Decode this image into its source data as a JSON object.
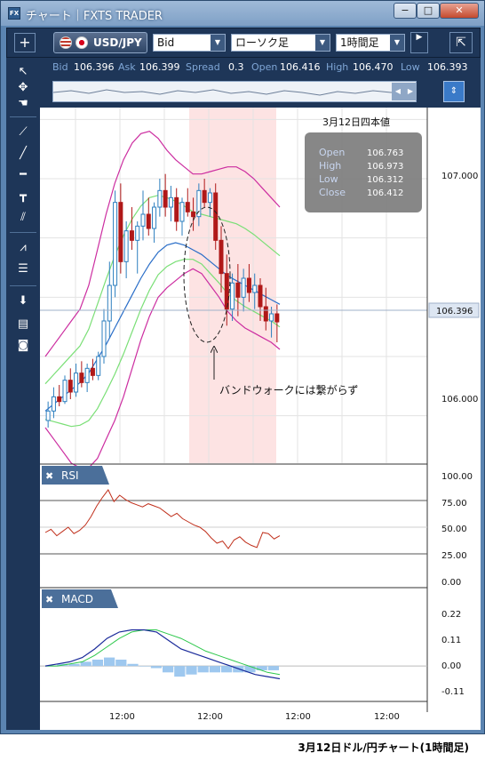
{
  "window": {
    "icon_text": "FX",
    "title": "チャート｜FXTS TRADER",
    "buttons": {
      "minimize": "−",
      "maximize": "□",
      "close": "✕"
    }
  },
  "toolbar": {
    "plus_label": "+",
    "pair": "USD/JPY",
    "price_type": "Bid",
    "chart_type": "ローソク足",
    "timeframe": "1時間足",
    "scroll_glyph": "▶",
    "detach_glyph": "⇱"
  },
  "quote": {
    "bid_label": "Bid",
    "bid": "106.396",
    "ask_label": "Ask",
    "ask": "106.399",
    "spread_label": "Spread",
    "spread": "0.3",
    "open_label": "Open",
    "open": "106.416",
    "high_label": "High",
    "high": "106.470",
    "low_label": "Low",
    "low": "106.393"
  },
  "ohlc_box": {
    "title": "3月12日四本値",
    "open_label": "Open",
    "open": "106.763",
    "high_label": "High",
    "high": "106.973",
    "low_label": "Low",
    "low": "106.312",
    "close_label": "Close",
    "close": "106.412"
  },
  "annotation": "バンドウォークには繋がらず",
  "price_axis": {
    "ticks": [
      "107.000",
      "106.000"
    ],
    "current": "106.396"
  },
  "rsi": {
    "label": "RSI",
    "ticks": [
      "100.00",
      "75.00",
      "50.00",
      "25.00",
      "0.00"
    ]
  },
  "macd": {
    "label": "MACD",
    "ticks": [
      "0.22",
      "0.11",
      "0.00",
      "-0.11"
    ]
  },
  "time_axis": [
    "12:00",
    "12:00",
    "12:00",
    "12:00"
  ],
  "caption": "3月12日ドル/円チャート(1時間足)",
  "colors": {
    "up_candle": "#2d7fbf",
    "down_candle": "#b01818",
    "bb_outer": "#cc2da0",
    "bb_inner": "#7adf76",
    "ma": "#2a6ec8",
    "highlight": "#fde3e3",
    "rsi_line": "#c0301c",
    "macd_line": "#1a2a9a",
    "signal_line": "#2ec84c",
    "hist": "#9ec8ef"
  },
  "chart_data": {
    "type": "candlestick",
    "title": "",
    "x_ticks": [
      "12:00",
      "12:00",
      "12:00",
      "12:00"
    ],
    "ylim": [
      105.8,
      107.3
    ],
    "y_ticks": [
      106.0,
      107.0
    ],
    "current_price": 106.396,
    "series": [
      {
        "candles": [
          [
            105.98,
            106.06,
            105.95,
            106.02
          ],
          [
            106.02,
            106.12,
            105.99,
            106.08
          ],
          [
            106.08,
            106.13,
            106.04,
            106.06
          ],
          [
            106.06,
            106.17,
            106.05,
            106.15
          ],
          [
            106.15,
            106.2,
            106.07,
            106.1
          ],
          [
            106.1,
            106.22,
            106.08,
            106.18
          ],
          [
            106.18,
            106.23,
            106.12,
            106.14
          ],
          [
            106.14,
            106.22,
            106.1,
            106.2
          ],
          [
            106.2,
            106.24,
            106.15,
            106.17
          ],
          [
            106.17,
            106.27,
            106.15,
            106.25
          ],
          [
            106.25,
            106.45,
            106.22,
            106.4
          ],
          [
            106.4,
            106.65,
            106.33,
            106.55
          ],
          [
            106.55,
            106.95,
            106.5,
            106.9
          ],
          [
            106.9,
            106.98,
            106.6,
            106.65
          ],
          [
            106.65,
            106.82,
            106.58,
            106.78
          ],
          [
            106.78,
            106.88,
            106.7,
            106.74
          ],
          [
            106.74,
            106.82,
            106.6,
            106.8
          ],
          [
            106.8,
            106.95,
            106.74,
            106.85
          ],
          [
            106.85,
            106.92,
            106.76,
            106.79
          ],
          [
            106.79,
            106.9,
            106.73,
            106.88
          ],
          [
            106.88,
            107.0,
            106.84,
            106.95
          ],
          [
            106.95,
            107.02,
            106.84,
            106.88
          ],
          [
            106.88,
            106.97,
            106.82,
            106.92
          ],
          [
            106.92,
            106.96,
            106.78,
            106.82
          ],
          [
            106.82,
            106.92,
            106.76,
            106.9
          ],
          [
            106.9,
            106.96,
            106.84,
            106.86
          ],
          [
            106.86,
            106.92,
            106.78,
            106.84
          ],
          [
            106.84,
            106.98,
            106.8,
            106.95
          ],
          [
            106.95,
            107.0,
            106.88,
            106.9
          ],
          [
            106.9,
            106.96,
            106.84,
            106.94
          ],
          [
            106.94,
            106.98,
            106.7,
            106.74
          ],
          [
            106.74,
            106.8,
            106.52,
            106.6
          ],
          [
            106.6,
            106.68,
            106.38,
            106.45
          ],
          [
            106.45,
            106.6,
            106.4,
            106.56
          ],
          [
            106.56,
            106.64,
            106.42,
            106.5
          ],
          [
            106.5,
            106.62,
            106.44,
            106.58
          ],
          [
            106.58,
            106.64,
            106.48,
            106.52
          ],
          [
            106.52,
            106.6,
            106.45,
            106.55
          ],
          [
            106.55,
            106.58,
            106.4,
            106.46
          ],
          [
            106.46,
            106.54,
            106.36,
            106.4
          ],
          [
            106.4,
            106.46,
            106.33,
            106.43
          ],
          [
            106.43,
            106.47,
            106.31,
            106.396
          ]
        ]
      },
      {
        "name": "",
        "role": "bb_upper",
        "values": [
          106.25,
          106.3,
          106.35,
          106.4,
          106.45,
          106.55,
          106.7,
          106.85,
          106.98,
          107.08,
          107.15,
          107.19,
          107.2,
          107.17,
          107.12,
          107.08,
          107.05,
          107.02,
          107.02,
          107.03,
          107.04,
          107.05,
          107.05,
          107.03,
          107.0,
          106.96,
          106.92,
          106.88
        ]
      },
      {
        "name": "",
        "role": "bb_lower",
        "values": [
          105.95,
          105.9,
          105.85,
          105.8,
          105.78,
          105.78,
          105.82,
          105.9,
          105.98,
          106.08,
          106.2,
          106.32,
          106.42,
          106.5,
          106.54,
          106.57,
          106.6,
          106.62,
          106.6,
          106.55,
          106.5,
          106.44,
          106.4,
          106.37,
          106.35,
          106.33,
          106.31,
          106.28
        ]
      },
      {
        "name": "",
        "role": "ma",
        "values": [
          106.02,
          106.05,
          106.08,
          106.11,
          106.14,
          106.18,
          106.24,
          106.3,
          106.37,
          106.44,
          106.51,
          106.58,
          106.64,
          106.69,
          106.72,
          106.73,
          106.72,
          106.7,
          106.68,
          106.65,
          106.62,
          106.59,
          106.57,
          106.55,
          106.53,
          106.51,
          106.49,
          106.47
        ]
      }
    ],
    "rsi": {
      "ylim": [
        0,
        100
      ],
      "values": [
        45,
        48,
        42,
        46,
        50,
        44,
        47,
        52,
        60,
        70,
        78,
        85,
        74,
        80,
        76,
        73,
        71,
        69,
        72,
        70,
        68,
        64,
        60,
        63,
        58,
        55,
        52,
        50,
        46,
        40,
        35,
        37,
        30,
        38,
        41,
        36,
        33,
        31,
        45,
        44,
        39,
        42
      ]
    },
    "macd": {
      "ylim": [
        -0.15,
        0.26
      ],
      "macd": [
        0.0,
        0.01,
        0.02,
        0.04,
        0.08,
        0.13,
        0.16,
        0.17,
        0.17,
        0.16,
        0.12,
        0.08,
        0.06,
        0.04,
        0.02,
        0.0,
        -0.02,
        -0.04,
        -0.05,
        -0.06
      ],
      "signal": [
        0.0,
        0.0,
        0.01,
        0.02,
        0.05,
        0.09,
        0.13,
        0.16,
        0.17,
        0.17,
        0.15,
        0.13,
        0.1,
        0.07,
        0.05,
        0.03,
        0.01,
        -0.01,
        -0.03,
        -0.04
      ],
      "histogram": [
        0.0,
        0.01,
        0.01,
        0.02,
        0.03,
        0.04,
        0.03,
        0.01,
        0.0,
        -0.01,
        -0.03,
        -0.05,
        -0.04,
        -0.03,
        -0.03,
        -0.03,
        -0.03,
        -0.03,
        -0.02,
        -0.02
      ]
    }
  }
}
